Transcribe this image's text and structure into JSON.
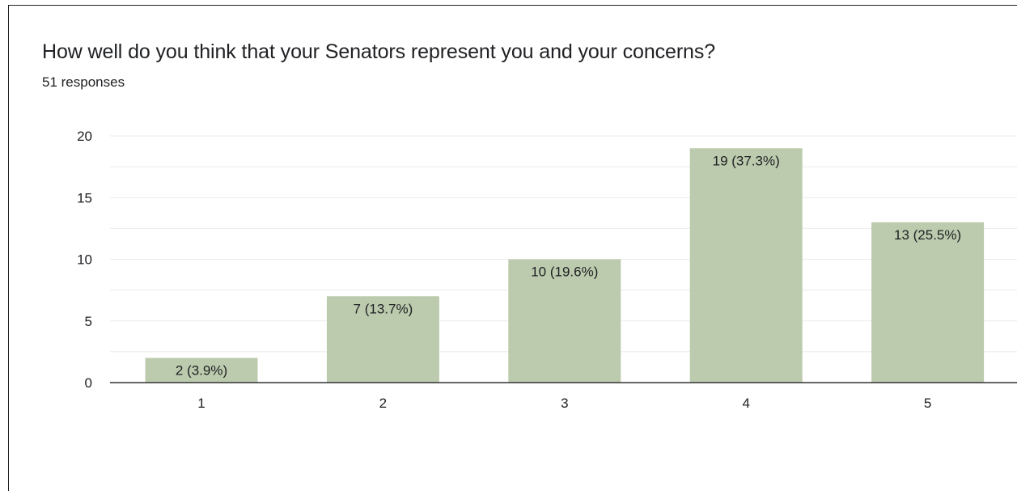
{
  "header": {
    "title": "How well do you think that your Senators represent you and your concerns?",
    "subtitle": "51 responses"
  },
  "colors": {
    "bar": "#bccbad",
    "grid": "#ebebeb",
    "axis": "#333333",
    "text": "#202124"
  },
  "chart_data": {
    "type": "bar",
    "title": "How well do you think that your Senators represent you and your concerns?",
    "subtitle": "51 responses",
    "categories": [
      "1",
      "2",
      "3",
      "4",
      "5"
    ],
    "values": [
      2,
      7,
      10,
      19,
      13
    ],
    "data_labels": [
      "2 (3.9%)",
      "7 (13.7%)",
      "10 (19.6%)",
      "19 (37.3%)",
      "13 (25.5%)"
    ],
    "y_ticks": [
      0,
      5,
      10,
      15,
      20
    ],
    "ylim": [
      0,
      20
    ],
    "xlabel": "",
    "ylabel": "",
    "grid": true,
    "minor_grid": true,
    "legend": "none"
  }
}
